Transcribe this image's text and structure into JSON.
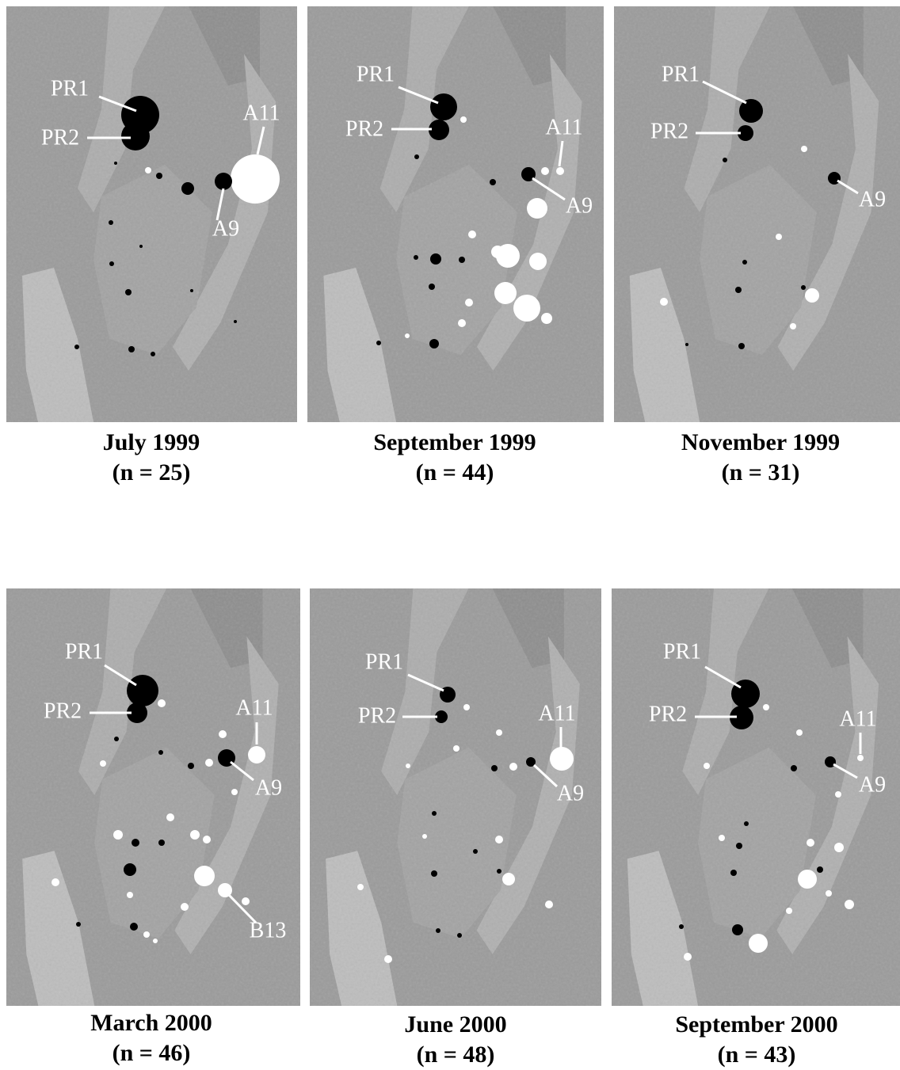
{
  "panels": [
    {
      "title": "July 1999",
      "n": "(n = 25)",
      "labels": [
        "PR1",
        "PR2",
        "A11",
        "A9"
      ]
    },
    {
      "title": "September 1999",
      "n": "(n = 44)",
      "labels": [
        "PR1",
        "PR2",
        "A11",
        "A9"
      ]
    },
    {
      "title": "November 1999",
      "n": "(n = 31)",
      "labels": [
        "PR1",
        "PR2",
        "A9"
      ]
    },
    {
      "title": "March 2000",
      "n": "(n = 46)",
      "labels": [
        "PR1",
        "PR2",
        "A11",
        "A9",
        "B13"
      ]
    },
    {
      "title": "June 2000",
      "n": "(n = 48)",
      "labels": [
        "PR1",
        "PR2",
        "A11",
        "A9"
      ]
    },
    {
      "title": "September 2000",
      "n": "(n = 43)",
      "labels": [
        "PR1",
        "PR2",
        "A11",
        "A9"
      ]
    }
  ]
}
